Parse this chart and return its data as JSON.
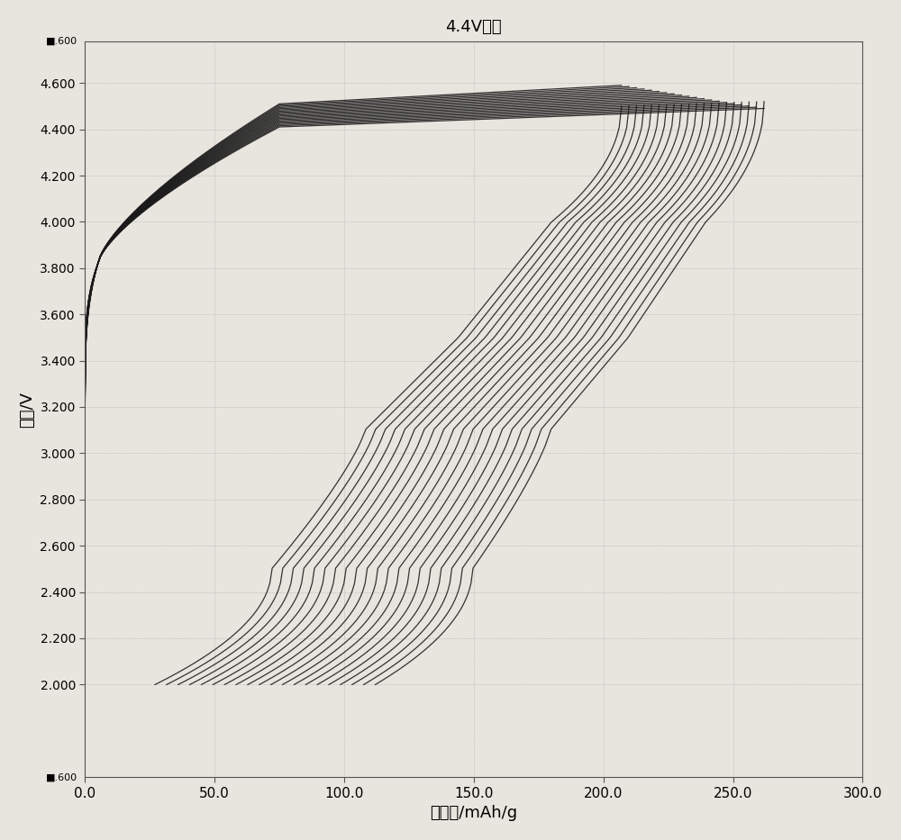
{
  "title": "4.4V循环",
  "xlabel": "比容量/mAh/g",
  "ylabel": "电压/V",
  "xlim": [
    0.0,
    300.0
  ],
  "y_min": 1.6,
  "y_max": 4.78,
  "x_ticks": [
    0.0,
    50.0,
    100.0,
    150.0,
    200.0,
    250.0,
    300.0
  ],
  "y_ticks": [
    2.0,
    2.2,
    2.4,
    2.6,
    2.8,
    3.0,
    3.2,
    3.4,
    3.6,
    3.8,
    4.0,
    4.2,
    4.4,
    4.6
  ],
  "background_color": "#e8e4de",
  "line_color": "#1a1a1a",
  "num_cycles": 20
}
